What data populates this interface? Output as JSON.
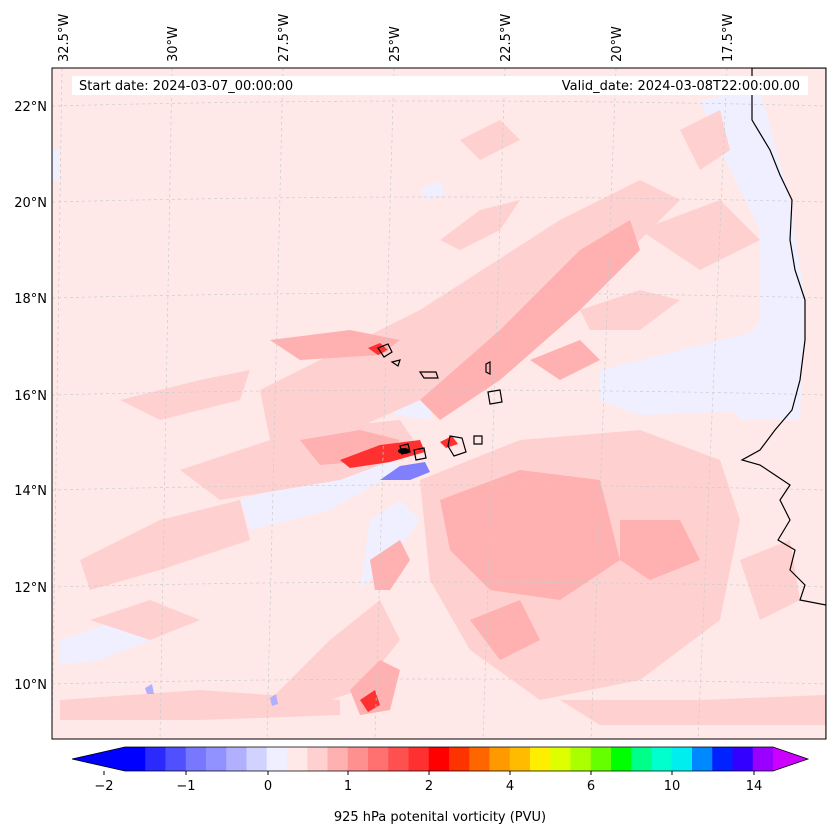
{
  "header": {
    "start_date": "Start date: 2024-03-07_00:00:00",
    "valid_date": "Valid_date: 2024-03-08T22:00:00.00"
  },
  "longitude_labels": [
    "32.5°W",
    "30°W",
    "27.5°W",
    "25°W",
    "22.5°W",
    "20°W",
    "17.5°W"
  ],
  "latitude_labels": [
    "22°N",
    "20°N",
    "18°N",
    "16°N",
    "14°N",
    "12°N",
    "10°N"
  ],
  "colorbar": {
    "label": "925 hPa potenital vorticity (PVU)",
    "ticks": [
      "−2",
      "−1",
      "0",
      "1",
      "2",
      "4",
      "6",
      "10",
      "14"
    ],
    "colors": [
      "#0000ff",
      "#2a2aff",
      "#5050ff",
      "#7878ff",
      "#9191ff",
      "#b0b0ff",
      "#d2d2ff",
      "#efefff",
      "#ffe8e8",
      "#ffd0d0",
      "#ffb0b0",
      "#ff9090",
      "#ff7070",
      "#ff5050",
      "#ff3030",
      "#ff0000",
      "#ff3300",
      "#ff6600",
      "#ff9900",
      "#ffbb00",
      "#ffee00",
      "#ddff00",
      "#aaff00",
      "#66ff00",
      "#00ff00",
      "#00ff88",
      "#00ffcc",
      "#00eeee",
      "#0088ff",
      "#0022ff",
      "#3300ff",
      "#9900ff"
    ],
    "under_color": "#0000ff",
    "over_color": "#cc00ff"
  },
  "colors": {
    "background_field": "#ffe8e8",
    "light_pink": "#ffd0d0",
    "pink": "#ffb0b0",
    "red": "#ff3030",
    "light_blue": "#efefff",
    "blue": "#8080ff"
  }
}
